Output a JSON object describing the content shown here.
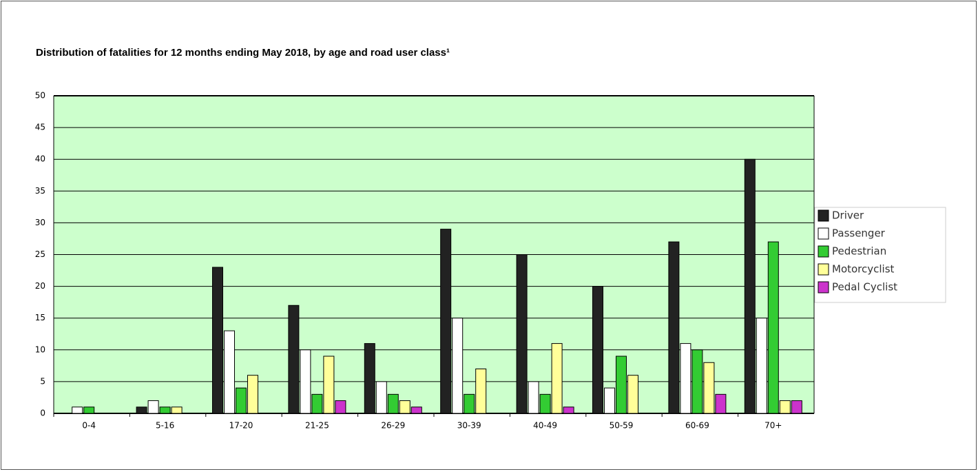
{
  "chart_data": {
    "type": "bar",
    "title": "Distribution of fatalities for 12 months ending May 2018, by age and road user class¹",
    "categories": [
      "0-4",
      "5-16",
      "17-20",
      "21-25",
      "26-29",
      "30-39",
      "40-49",
      "50-59",
      "60-69",
      "70+"
    ],
    "series": [
      {
        "name": "Driver",
        "color": "#222222",
        "values": [
          0,
          1,
          23,
          17,
          11,
          29,
          25,
          20,
          27,
          40
        ]
      },
      {
        "name": "Passenger",
        "color": "#ffffff",
        "values": [
          1,
          2,
          13,
          10,
          5,
          15,
          5,
          4,
          11,
          15
        ]
      },
      {
        "name": "Pedestrian",
        "color": "#33cc33",
        "values": [
          1,
          1,
          4,
          3,
          3,
          3,
          3,
          9,
          10,
          27
        ]
      },
      {
        "name": "Motorcyclist",
        "color": "#ffff99",
        "values": [
          0,
          1,
          6,
          9,
          2,
          7,
          11,
          6,
          8,
          2
        ]
      },
      {
        "name": "Pedal Cyclist",
        "color": "#cc33cc",
        "values": [
          0,
          0,
          0,
          2,
          1,
          0,
          1,
          0,
          3,
          2
        ]
      }
    ],
    "ylim": [
      0,
      50
    ],
    "yticks": [
      0,
      5,
      10,
      15,
      20,
      25,
      30,
      35,
      40,
      45,
      50
    ],
    "grid": true,
    "legend": "right"
  }
}
